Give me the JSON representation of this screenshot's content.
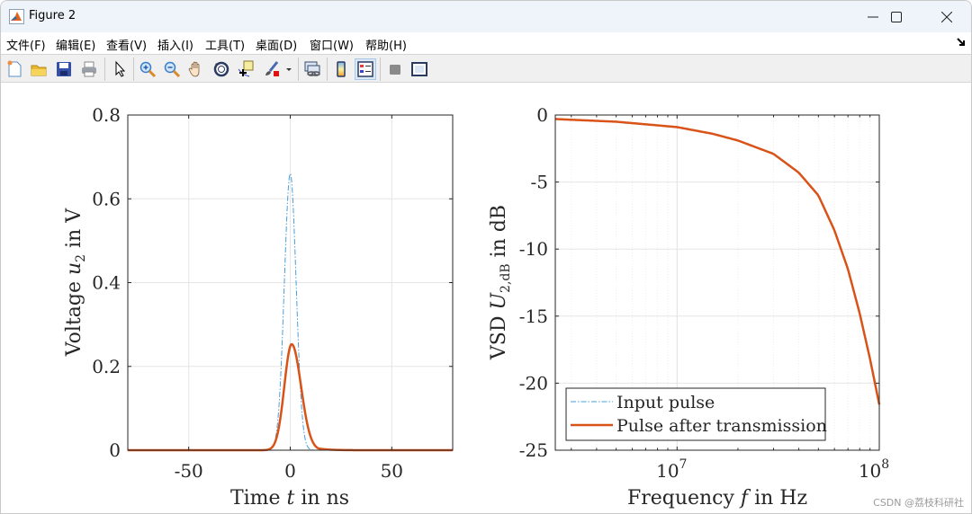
{
  "window": {
    "title": "Figure 2",
    "controls": [
      "minimize",
      "maximize",
      "close"
    ]
  },
  "menubar": {
    "items": [
      "文件(F)",
      "编辑(E)",
      "查看(V)",
      "插入(I)",
      "工具(T)",
      "桌面(D)",
      "窗口(W)",
      "帮助(H)"
    ]
  },
  "toolbar": {
    "buttons": [
      "new-figure-icon",
      "open-file-icon",
      "save-icon",
      "print-icon",
      "select-arrow-icon",
      "zoom-in-icon",
      "zoom-out-icon",
      "pan-hand-icon",
      "rotate-3d-icon",
      "data-cursor-icon",
      "brush-icon",
      "link-plot-icon",
      "colorbar-icon",
      "legend-icon",
      "hide-plot-tools-icon",
      "show-plot-tools-icon"
    ]
  },
  "colors": {
    "input_pulse": "#4a9fd8",
    "pulse_after_transmission": "#d95319",
    "grid": "#e6e6e6",
    "axes": "#262626"
  },
  "watermark": "CSDN @荔枝科研社",
  "chart_data": [
    {
      "type": "line",
      "title": "",
      "xlabel": "Time t in ns",
      "ylabel": "Voltage u2 in V",
      "xlim": [
        -80,
        80
      ],
      "ylim": [
        0,
        0.8
      ],
      "xticks": [
        -50,
        0,
        50
      ],
      "xtick_labels": [
        "-50",
        "0",
        "50"
      ],
      "yticks": [
        0,
        0.2,
        0.4,
        0.6,
        0.8
      ],
      "ytick_labels": [
        "0",
        "0.2",
        "0.4",
        "0.6",
        "0.8"
      ],
      "grid": true,
      "series": [
        {
          "name": "Input pulse",
          "style": "dash-dot",
          "color": "#4a9fd8",
          "x": [
            -80,
            -20,
            -10,
            -8,
            -6,
            -4,
            -3,
            -2,
            -1,
            0,
            1,
            2,
            3,
            4,
            6,
            8,
            10,
            20,
            80
          ],
          "y": [
            0,
            0,
            0.003,
            0.02,
            0.09,
            0.27,
            0.39,
            0.52,
            0.62,
            0.66,
            0.62,
            0.52,
            0.39,
            0.27,
            0.09,
            0.02,
            0.003,
            0,
            0
          ]
        },
        {
          "name": "Pulse after transmission",
          "style": "solid",
          "color": "#d95319",
          "x": [
            -80,
            -20,
            -12,
            -8,
            -6,
            -4,
            -2,
            0,
            1,
            2,
            4,
            6,
            8,
            10,
            12,
            15,
            20,
            30,
            80
          ],
          "y": [
            0,
            0.001,
            0.005,
            0.02,
            0.05,
            0.11,
            0.19,
            0.245,
            0.253,
            0.245,
            0.19,
            0.12,
            0.07,
            0.04,
            0.025,
            0.012,
            0.005,
            0.001,
            0
          ]
        }
      ]
    },
    {
      "type": "line",
      "title": "",
      "xlabel": "Frequency f in Hz",
      "ylabel": "VSD U2,dB in dB",
      "xscale": "log",
      "xlim": [
        2500000,
        100000000
      ],
      "ylim": [
        -25,
        0
      ],
      "xticks": [
        10000000,
        100000000
      ],
      "xtick_labels": [
        "10^7",
        "10^8"
      ],
      "yticks": [
        -25,
        -20,
        -15,
        -10,
        -5,
        0
      ],
      "ytick_labels": [
        "-25",
        "-20",
        "-15",
        "-10",
        "-5",
        "0"
      ],
      "grid": true,
      "legend": {
        "position": "southwest",
        "entries": [
          "Input pulse",
          "Pulse after transmission"
        ]
      },
      "series": [
        {
          "name": "Pulse after transmission",
          "style": "solid",
          "color": "#d95319",
          "x": [
            2500000,
            5000000,
            10000000,
            15000000,
            20000000,
            30000000,
            40000000,
            50000000,
            60000000,
            70000000,
            80000000,
            90000000,
            100000000
          ],
          "y": [
            -0.3,
            -0.5,
            -0.9,
            -1.4,
            -1.9,
            -2.9,
            -4.3,
            -6.0,
            -8.6,
            -11.5,
            -14.8,
            -18.2,
            -21.6
          ]
        }
      ]
    }
  ]
}
